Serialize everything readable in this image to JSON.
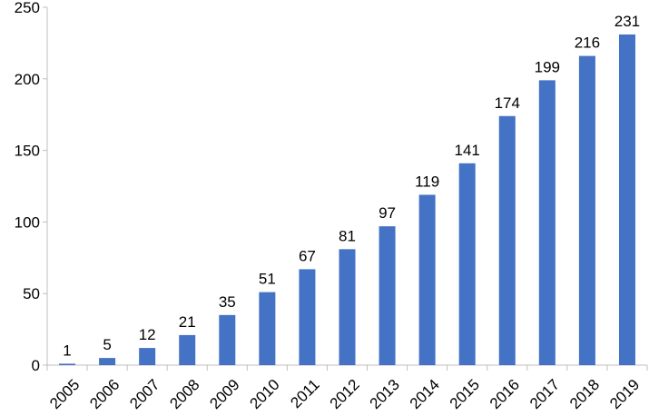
{
  "chart_data": {
    "type": "bar",
    "title": "",
    "xlabel": "",
    "ylabel": "",
    "categories": [
      "2005",
      "2006",
      "2007",
      "2008",
      "2009",
      "2010",
      "2011",
      "2012",
      "2013",
      "2014",
      "2015",
      "2016",
      "2017",
      "2018",
      "2019"
    ],
    "values": [
      1,
      5,
      12,
      21,
      35,
      51,
      67,
      81,
      97,
      119,
      141,
      174,
      199,
      216,
      231
    ],
    "ylim": [
      0,
      250
    ],
    "yticks": [
      0,
      50,
      100,
      150,
      200,
      250
    ],
    "grid": false,
    "legend": "none",
    "data_labels": true,
    "bar_color": "#4472C4",
    "axis_color": "#BFBFBF"
  }
}
